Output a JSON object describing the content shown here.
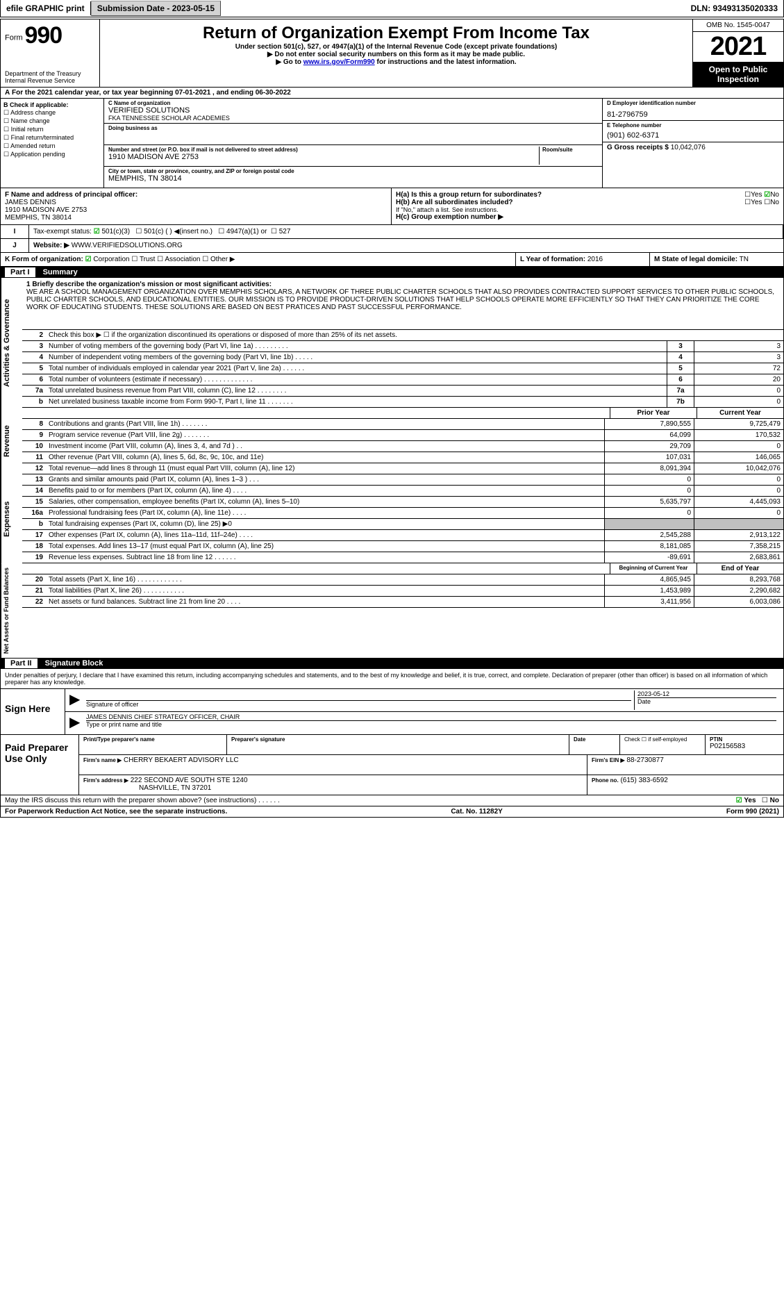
{
  "topbar": {
    "efile": "efile GRAPHIC print",
    "submission": "Submission Date - 2023-05-15",
    "dln": "DLN: 93493135020333"
  },
  "header": {
    "form_prefix": "Form",
    "form_number": "990",
    "dept": "Department of the Treasury",
    "irs": "Internal Revenue Service",
    "title": "Return of Organization Exempt From Income Tax",
    "subtitle": "Under section 501(c), 527, or 4947(a)(1) of the Internal Revenue Code (except private foundations)",
    "warn1": "▶ Do not enter social security numbers on this form as it may be made public.",
    "warn2_prefix": "▶ Go to ",
    "warn2_link": "www.irs.gov/Form990",
    "warn2_suffix": " for instructions and the latest information.",
    "omb": "OMB No. 1545-0047",
    "year": "2021",
    "inspection": "Open to Public Inspection"
  },
  "sectionA": {
    "text": "For the 2021 calendar year, or tax year beginning 07-01-2021    , and ending 06-30-2022"
  },
  "checkboxes": {
    "header": "B Check if applicable:",
    "items": [
      "Address change",
      "Name change",
      "Initial return",
      "Final return/terminated",
      "Amended return",
      "Application pending"
    ]
  },
  "org": {
    "c_label": "C Name of organization",
    "name": "VERIFIED SOLUTIONS",
    "fka": "FKA TENNESSEE SCHOLAR ACADEMIES",
    "dba_label": "Doing business as",
    "addr_label": "Number and street (or P.O. box if mail is not delivered to street address)",
    "room_label": "Room/suite",
    "addr": "1910 MADISON AVE 2753",
    "city_label": "City or town, state or province, country, and ZIP or foreign postal code",
    "city": "MEMPHIS, TN  38014"
  },
  "ein": {
    "d_label": "D Employer identification number",
    "d_val": "81-2796759",
    "e_label": "E Telephone number",
    "e_val": "(901) 602-6371",
    "g_label": "G Gross receipts $",
    "g_val": "10,042,076"
  },
  "officer": {
    "f_label": "F  Name and address of principal officer:",
    "name": "JAMES DENNIS",
    "addr1": "1910 MADISON AVE 2753",
    "addr2": "MEMPHIS, TN  38014"
  },
  "h": {
    "a": "H(a)  Is this a group return for subordinates?",
    "a_no": "No",
    "b": "H(b)  Are all subordinates included?",
    "b_note": "If \"No,\" attach a list. See instructions.",
    "c": "H(c)  Group exemption number ▶"
  },
  "tax_exempt": {
    "label": "Tax-exempt status:",
    "501c3": "501(c)(3)",
    "501c": "501(c) (  ) ◀(insert no.)",
    "4947": "4947(a)(1) or",
    "527": "527"
  },
  "website": {
    "label": "Website: ▶",
    "val": "WWW.VERIFIEDSOLUTIONS.ORG"
  },
  "k": {
    "label": "K Form of organization:",
    "corp": "Corporation",
    "trust": "Trust",
    "assoc": "Association",
    "other": "Other ▶"
  },
  "l": {
    "label": "L Year of formation:",
    "val": "2016"
  },
  "m": {
    "label": "M State of legal domicile:",
    "val": "TN"
  },
  "part1": {
    "tab": "Part I",
    "title": "Summary"
  },
  "mission": {
    "label": "1  Briefly describe the organization's mission or most significant activities:",
    "text": "WE ARE A SCHOOL MANAGEMENT ORGANIZATION OVER MEMPHIS SCHOLARS, A NETWORK OF THREE PUBLIC CHARTER SCHOOLS THAT ALSO PROVIDES CONTRACTED SUPPORT SERVICES TO OTHER PUBLIC SCHOOLS, PUBLIC CHARTER SCHOOLS, AND EDUCATIONAL ENTITIES. OUR MISSION IS TO PROVIDE PRODUCT-DRIVEN SOLUTIONS THAT HELP SCHOOLS OPERATE MORE EFFICIENTLY SO THAT THEY CAN PRIORITIZE THE CORE WORK OF EDUCATING STUDENTS. THESE SOLUTIONS ARE BASED ON BEST PRATICES AND PAST SUCCESSFUL PERFORMANCE."
  },
  "governance_rows": [
    {
      "n": "2",
      "desc": "Check this box ▶ ☐ if the organization discontinued its operations or disposed of more than 25% of its net assets.",
      "box": "",
      "val": ""
    },
    {
      "n": "3",
      "desc": "Number of voting members of the governing body (Part VI, line 1a)   .    .    .    .    .    .    .    .    .",
      "box": "3",
      "val": "3"
    },
    {
      "n": "4",
      "desc": "Number of independent voting members of the governing body (Part VI, line 1b)   .    .    .    .    .",
      "box": "4",
      "val": "3"
    },
    {
      "n": "5",
      "desc": "Total number of individuals employed in calendar year 2021 (Part V, line 2a)   .    .    .    .    .    .",
      "box": "5",
      "val": "72"
    },
    {
      "n": "6",
      "desc": "Total number of volunteers (estimate if necessary)   .    .    .    .    .    .    .    .    .    .    .    .    .",
      "box": "6",
      "val": "20"
    },
    {
      "n": "7a",
      "desc": "Total unrelated business revenue from Part VIII, column (C), line 12   .    .    .    .    .    .    .    .",
      "box": "7a",
      "val": "0"
    },
    {
      "n": "b",
      "desc": "Net unrelated business taxable income from Form 990-T, Part I, line 11   .    .    .    .    .    .    .",
      "box": "7b",
      "val": "0"
    }
  ],
  "revenue_header": {
    "prior": "Prior Year",
    "current": "Current Year"
  },
  "revenue_rows": [
    {
      "n": "8",
      "desc": "Contributions and grants (Part VIII, line 1h)   .    .    .    .    .    .    .",
      "prior": "7,890,555",
      "current": "9,725,479"
    },
    {
      "n": "9",
      "desc": "Program service revenue (Part VIII, line 2g)   .    .    .    .    .    .    .",
      "prior": "64,099",
      "current": "170,532"
    },
    {
      "n": "10",
      "desc": "Investment income (Part VIII, column (A), lines 3, 4, and 7d )   .    .",
      "prior": "29,709",
      "current": "0"
    },
    {
      "n": "11",
      "desc": "Other revenue (Part VIII, column (A), lines 5, 6d, 8c, 9c, 10c, and 11e)",
      "prior": "107,031",
      "current": "146,065"
    },
    {
      "n": "12",
      "desc": "Total revenue—add lines 8 through 11 (must equal Part VIII, column (A), line 12)",
      "prior": "8,091,394",
      "current": "10,042,076"
    }
  ],
  "expense_rows": [
    {
      "n": "13",
      "desc": "Grants and similar amounts paid (Part IX, column (A), lines 1–3 )   .    .    .",
      "prior": "0",
      "current": "0"
    },
    {
      "n": "14",
      "desc": "Benefits paid to or for members (Part IX, column (A), line 4)   .    .    .    .",
      "prior": "0",
      "current": "0"
    },
    {
      "n": "15",
      "desc": "Salaries, other compensation, employee benefits (Part IX, column (A), lines 5–10)",
      "prior": "5,635,797",
      "current": "4,445,093"
    },
    {
      "n": "16a",
      "desc": "Professional fundraising fees (Part IX, column (A), line 11e)   .    .    .    .",
      "prior": "0",
      "current": "0"
    },
    {
      "n": "b",
      "desc": "Total fundraising expenses (Part IX, column (D), line 25) ▶0",
      "prior": "",
      "current": "",
      "shaded": true
    },
    {
      "n": "17",
      "desc": "Other expenses (Part IX, column (A), lines 11a–11d, 11f–24e)   .    .    .    .",
      "prior": "2,545,288",
      "current": "2,913,122"
    },
    {
      "n": "18",
      "desc": "Total expenses. Add lines 13–17 (must equal Part IX, column (A), line 25)",
      "prior": "8,181,085",
      "current": "7,358,215"
    },
    {
      "n": "19",
      "desc": "Revenue less expenses. Subtract line 18 from line 12   .    .    .    .    .    .",
      "prior": "-89,691",
      "current": "2,683,861"
    }
  ],
  "net_header": {
    "prior": "Beginning of Current Year",
    "current": "End of Year"
  },
  "net_rows": [
    {
      "n": "20",
      "desc": "Total assets (Part X, line 16)   .    .    .    .    .    .    .    .    .    .    .    .",
      "prior": "4,865,945",
      "current": "8,293,768"
    },
    {
      "n": "21",
      "desc": "Total liabilities (Part X, line 26)   .    .    .    .    .    .    .    .    .    .    .",
      "prior": "1,453,989",
      "current": "2,290,682"
    },
    {
      "n": "22",
      "desc": "Net assets or fund balances. Subtract line 21 from line 20   .    .    .    .",
      "prior": "3,411,956",
      "current": "6,003,086"
    }
  ],
  "part2": {
    "tab": "Part II",
    "title": "Signature Block"
  },
  "perjury": "Under penalties of perjury, I declare that I have examined this return, including accompanying schedules and statements, and to the best of my knowledge and belief, it is true, correct, and complete. Declaration of preparer (other than officer) is based on all information of which preparer has any knowledge.",
  "sign": {
    "here": "Sign Here",
    "sig_label": "Signature of officer",
    "date": "2023-05-12",
    "date_label": "Date",
    "name": "JAMES DENNIS  CHIEF STRATEGY OFFICER, CHAIR",
    "name_label": "Type or print name and title"
  },
  "preparer": {
    "header": "Paid Preparer Use Only",
    "col_name": "Print/Type preparer's name",
    "col_sig": "Preparer's signature",
    "col_date": "Date",
    "col_check": "Check ☐ if self-employed",
    "col_ptin": "PTIN",
    "ptin": "P02156583",
    "firm_name_label": "Firm's name      ▶",
    "firm_name": "CHERRY BEKAERT ADVISORY LLC",
    "firm_ein_label": "Firm's EIN ▶",
    "firm_ein": "88-2730877",
    "firm_addr_label": "Firm's address ▶",
    "firm_addr": "222 SECOND AVE SOUTH STE 1240",
    "firm_city": "NASHVILLE, TN  37201",
    "phone_label": "Phone no.",
    "phone": "(615) 383-6592"
  },
  "footer": {
    "discuss": "May the IRS discuss this return with the preparer shown above? (see instructions)    .    .    .    .    .    .",
    "yes": "Yes",
    "no": "No",
    "paperwork": "For Paperwork Reduction Act Notice, see the separate instructions.",
    "cat": "Cat. No. 11282Y",
    "form": "Form 990 (2021)"
  },
  "side_labels": {
    "gov": "Activities & Governance",
    "rev": "Revenue",
    "exp": "Expenses",
    "net": "Net Assets or Fund Balances"
  }
}
